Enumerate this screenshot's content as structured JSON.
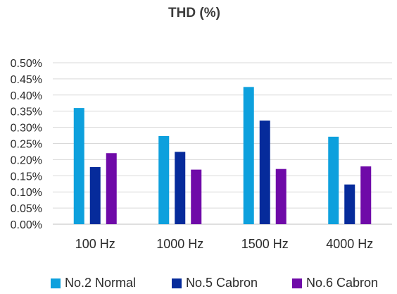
{
  "chart_data": {
    "type": "bar",
    "title": "THD (%)",
    "xlabel": "",
    "ylabel": "",
    "categories": [
      "100 Hz",
      "1000 Hz",
      "1500 Hz",
      "4000 Hz"
    ],
    "series": [
      {
        "name": "No.2 Normal",
        "color": "#0da0dd",
        "values": [
          0.36,
          0.273,
          0.425,
          0.271
        ]
      },
      {
        "name": "No.5 Cabron",
        "color": "#062b9b",
        "values": [
          0.177,
          0.224,
          0.321,
          0.123
        ]
      },
      {
        "name": "No.6 Cabron",
        "color": "#6f0aa8",
        "values": [
          0.22,
          0.169,
          0.171,
          0.179
        ]
      }
    ],
    "ylim": [
      0,
      0.5
    ],
    "yticks": [
      "0.00%",
      "0.05%",
      "0.10%",
      "0.15%",
      "0.20%",
      "0.25%",
      "0.30%",
      "0.35%",
      "0.40%",
      "0.45%",
      "0.50%"
    ],
    "grid": true,
    "legend_position": "bottom"
  }
}
